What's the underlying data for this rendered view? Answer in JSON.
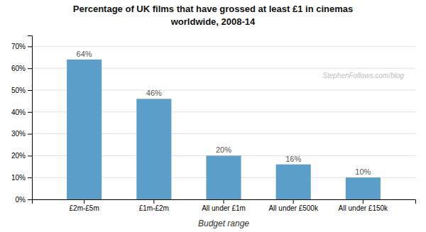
{
  "chart_data": {
    "type": "bar",
    "title": "Percentage of UK films that have grossed at least £1 in cinemas",
    "subtitle": "worldwide, 2008-14",
    "xlabel": "Budget range",
    "annotations": [
      "StephenFollows.com/blog"
    ],
    "categories": [
      "£2m-£5m",
      "£1m-£2m",
      "All under £1m",
      "All under £500k",
      "All under £150k"
    ],
    "values": [
      64,
      46,
      20,
      16,
      10
    ],
    "value_labels": [
      "64%",
      "46%",
      "20%",
      "16%",
      "10%"
    ],
    "data_labels": true,
    "color": "#5b9ec9",
    "ylim": [
      0,
      75
    ],
    "yticks": [
      {
        "value": 0,
        "label": "0%"
      },
      {
        "value": 10,
        "label": "10%"
      },
      {
        "value": 20,
        "label": "20%"
      },
      {
        "value": 30,
        "label": "30%"
      },
      {
        "value": 40,
        "label": "40%"
      },
      {
        "value": 50,
        "label": "50%"
      },
      {
        "value": 60,
        "label": "60%"
      },
      {
        "value": 70,
        "label": "70%"
      }
    ],
    "grid": true
  }
}
